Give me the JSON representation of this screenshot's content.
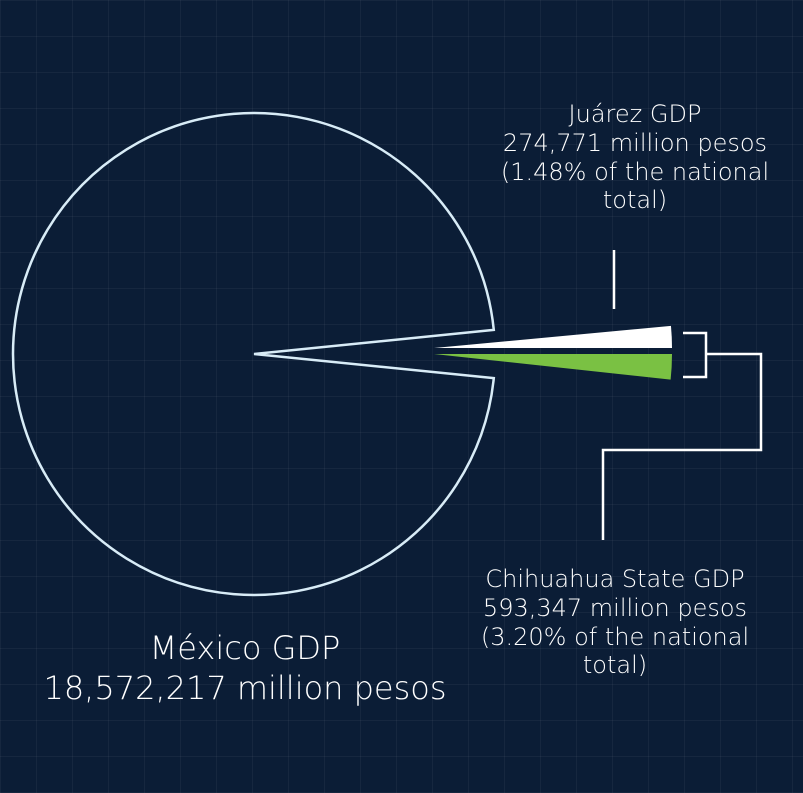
{
  "chart_data": {
    "type": "pie",
    "title": "",
    "slices": [
      {
        "name": "México GDP",
        "value": 18572217,
        "unit": "million pesos",
        "color": "#0b1d36",
        "outline": "#d8ecf7"
      },
      {
        "name": "Chihuahua State GDP",
        "value": 593347,
        "unit": "million pesos",
        "share_percent": 3.2,
        "color": "#7ac143",
        "exploded": true
      },
      {
        "name": "Juárez GDP",
        "value": 274771,
        "unit": "million pesos",
        "share_percent": 1.48,
        "color": "#ffffff",
        "exploded": true
      }
    ]
  },
  "labels": {
    "juarez": {
      "line1": "Juárez GDP",
      "line2": "274,771 million pesos",
      "line3": "(1.48% of the national",
      "line4": "total)"
    },
    "chihuahua": {
      "line1": "Chihuahua State GDP",
      "line2": "593,347 million pesos",
      "line3": "(3.20% of the national",
      "line4": "total)"
    },
    "mexico": {
      "line1": "México GDP",
      "line2": "18,572,217 million pesos"
    }
  },
  "colors": {
    "background": "#0b1d36",
    "outline": "#d8ecf7",
    "connector": "#ffffff",
    "chihuahua": "#7ac143",
    "juarez": "#ffffff"
  }
}
